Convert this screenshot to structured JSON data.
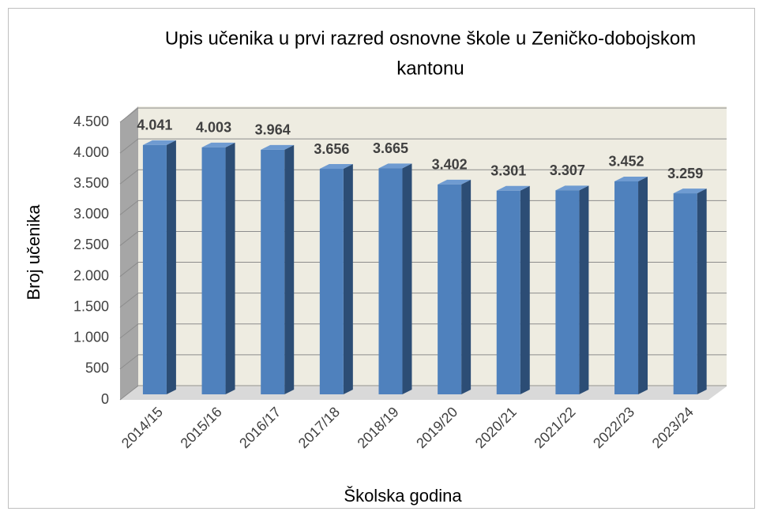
{
  "chart_data": {
    "type": "bar3d",
    "title": [
      "Upis učenika u prvi razred osnovne škole u Zeničko-dobojskom",
      "kantonu"
    ],
    "x_label": "Školska godina",
    "y_label": "Broj učenika",
    "categories": [
      "2014/15",
      "2015/16",
      "2016/17",
      "2017/18",
      "2018/19",
      "2019/20",
      "2020/21",
      "2021/22",
      "2022/23",
      "2023/24"
    ],
    "values": [
      4041,
      4003,
      3964,
      3656,
      3665,
      3402,
      3301,
      3307,
      3452,
      3259
    ],
    "value_labels": [
      "4.041",
      "4.003",
      "3.964",
      "3.656",
      "3.665",
      "3.402",
      "3.301",
      "3.307",
      "3.452",
      "3.259"
    ],
    "color": "#4f81bd",
    "ylim": [
      0,
      4500
    ],
    "yticks": [
      0,
      500,
      {
        "value": 1000,
        "label": "1.000"
      },
      {
        "value": 1500,
        "label": "1.500"
      },
      {
        "value": 2000,
        "label": "2.000"
      },
      {
        "value": 2500,
        "label": "2.500"
      },
      {
        "value": 3000,
        "label": "3.000"
      },
      {
        "value": 3500,
        "label": "3.500"
      },
      {
        "value": 4000,
        "label": "4.000"
      },
      {
        "value": 4500,
        "label": "4.500"
      }
    ],
    "grid": true
  }
}
